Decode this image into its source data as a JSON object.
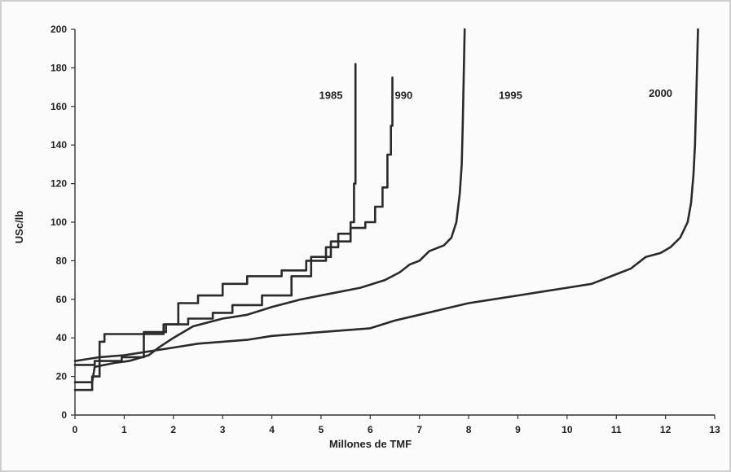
{
  "chart_data": {
    "type": "line",
    "title": "",
    "xlabel": "Millones de TMF",
    "ylabel": "USc/lb",
    "xlim": [
      0,
      13
    ],
    "ylim": [
      0,
      200
    ],
    "xticks": [
      0,
      1,
      2,
      3,
      4,
      5,
      6,
      7,
      8,
      9,
      10,
      11,
      12,
      13
    ],
    "yticks": [
      0,
      20,
      40,
      60,
      80,
      100,
      120,
      140,
      160,
      180,
      200
    ],
    "grid": false,
    "legend": "none",
    "series": [
      {
        "name": "1985",
        "step": true,
        "points": [
          [
            0,
            13
          ],
          [
            0.35,
            13
          ],
          [
            0.35,
            20
          ],
          [
            0.5,
            20
          ],
          [
            0.5,
            38
          ],
          [
            0.6,
            38
          ],
          [
            0.6,
            42
          ],
          [
            1.4,
            42
          ],
          [
            1.4,
            43
          ],
          [
            1.85,
            43
          ],
          [
            1.85,
            47
          ],
          [
            2.1,
            47
          ],
          [
            2.1,
            58
          ],
          [
            2.5,
            58
          ],
          [
            2.5,
            62
          ],
          [
            3,
            62
          ],
          [
            3,
            68
          ],
          [
            3.5,
            68
          ],
          [
            3.5,
            72
          ],
          [
            4.2,
            72
          ],
          [
            4.2,
            75
          ],
          [
            4.7,
            75
          ],
          [
            4.7,
            80
          ],
          [
            5.1,
            80
          ],
          [
            5.1,
            87
          ],
          [
            5.35,
            87
          ],
          [
            5.35,
            94
          ],
          [
            5.6,
            94
          ],
          [
            5.6,
            100
          ],
          [
            5.67,
            100
          ],
          [
            5.67,
            120
          ],
          [
            5.7,
            120
          ],
          [
            5.7,
            182
          ]
        ]
      },
      {
        "name": "1990",
        "step": true,
        "points": [
          [
            0,
            26
          ],
          [
            0.4,
            26
          ],
          [
            0.4,
            28
          ],
          [
            0.95,
            28
          ],
          [
            0.95,
            30
          ],
          [
            1.4,
            30
          ],
          [
            1.4,
            42
          ],
          [
            1.8,
            42
          ],
          [
            1.8,
            47
          ],
          [
            2.3,
            47
          ],
          [
            2.3,
            50
          ],
          [
            2.8,
            50
          ],
          [
            2.8,
            53
          ],
          [
            3.2,
            53
          ],
          [
            3.2,
            57
          ],
          [
            3.8,
            57
          ],
          [
            3.8,
            62
          ],
          [
            4.4,
            62
          ],
          [
            4.4,
            72
          ],
          [
            4.8,
            72
          ],
          [
            4.8,
            82
          ],
          [
            5.2,
            82
          ],
          [
            5.2,
            90
          ],
          [
            5.6,
            90
          ],
          [
            5.6,
            97
          ],
          [
            5.9,
            97
          ],
          [
            5.9,
            100
          ],
          [
            6.1,
            100
          ],
          [
            6.1,
            108
          ],
          [
            6.25,
            108
          ],
          [
            6.25,
            118
          ],
          [
            6.35,
            118
          ],
          [
            6.35,
            135
          ],
          [
            6.42,
            135
          ],
          [
            6.42,
            150
          ],
          [
            6.45,
            150
          ],
          [
            6.45,
            175
          ]
        ]
      },
      {
        "name": "1995",
        "step": false,
        "points": [
          [
            0,
            17
          ],
          [
            0.35,
            17
          ],
          [
            0.4,
            25
          ],
          [
            0.8,
            27
          ],
          [
            1.1,
            28
          ],
          [
            1.5,
            31
          ],
          [
            1.7,
            35
          ],
          [
            2,
            40
          ],
          [
            2.4,
            46
          ],
          [
            3,
            50
          ],
          [
            3.5,
            52
          ],
          [
            4,
            56
          ],
          [
            4.6,
            60
          ],
          [
            5.2,
            63
          ],
          [
            5.8,
            66
          ],
          [
            6.3,
            70
          ],
          [
            6.6,
            74
          ],
          [
            6.8,
            78
          ],
          [
            7,
            80
          ],
          [
            7.2,
            85
          ],
          [
            7.5,
            88
          ],
          [
            7.65,
            92
          ],
          [
            7.75,
            100
          ],
          [
            7.82,
            115
          ],
          [
            7.86,
            130
          ],
          [
            7.88,
            150
          ],
          [
            7.9,
            175
          ],
          [
            7.92,
            200
          ]
        ]
      },
      {
        "name": "2000",
        "step": false,
        "points": [
          [
            0,
            28
          ],
          [
            0.5,
            30
          ],
          [
            1,
            31
          ],
          [
            1.5,
            33
          ],
          [
            2,
            35
          ],
          [
            2.5,
            37
          ],
          [
            3,
            38
          ],
          [
            3.5,
            39
          ],
          [
            4,
            41
          ],
          [
            5,
            43
          ],
          [
            6,
            45
          ],
          [
            6.5,
            49
          ],
          [
            7,
            52
          ],
          [
            7.5,
            55
          ],
          [
            8,
            58
          ],
          [
            8.5,
            60
          ],
          [
            9,
            62
          ],
          [
            9.5,
            64
          ],
          [
            10,
            66
          ],
          [
            10.5,
            68
          ],
          [
            11,
            73
          ],
          [
            11.3,
            76
          ],
          [
            11.6,
            82
          ],
          [
            11.9,
            84
          ],
          [
            12.1,
            87
          ],
          [
            12.3,
            92
          ],
          [
            12.45,
            100
          ],
          [
            12.52,
            110
          ],
          [
            12.57,
            125
          ],
          [
            12.6,
            140
          ],
          [
            12.62,
            160
          ],
          [
            12.64,
            180
          ],
          [
            12.66,
            200
          ]
        ]
      }
    ]
  },
  "series_labels": [
    {
      "name": "1985",
      "text": "1985",
      "x": 5.2,
      "y": 164
    },
    {
      "name": "1990",
      "text": "990",
      "x": 6.68,
      "y": 164
    },
    {
      "name": "1995",
      "text": "1995",
      "x": 8.85,
      "y": 164
    },
    {
      "name": "2000",
      "text": "2000",
      "x": 11.9,
      "y": 165
    }
  ]
}
